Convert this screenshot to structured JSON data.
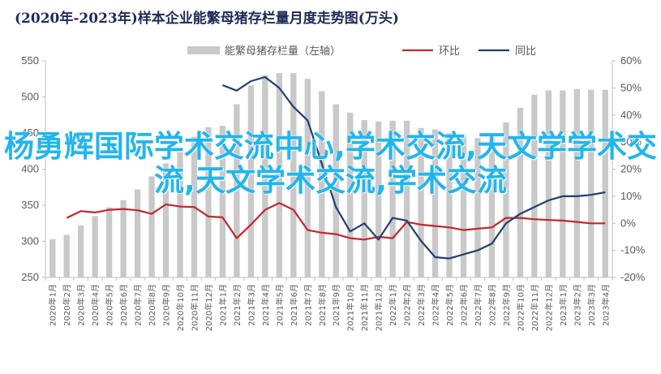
{
  "title": "(2020年-2023年)样本企业能繁母猪存栏量月度走势图(万头)",
  "watermark_text": "杨勇辉国际学术交流中心,学术交流,天文学学术交流,天文学术交流,学术交流",
  "colors": {
    "bar": "#c9c9c9",
    "yoy_line": "#c0282c",
    "mom_line": "#1f3f73",
    "axis": "#bfbfbf",
    "tick_text": "#595959",
    "watermark": "#22b5ee"
  },
  "chart_data": {
    "type": "bar",
    "categories": [
      "2020年1月",
      "2020年2月",
      "2020年3月",
      "2020年4月",
      "2020年5月",
      "2020年6月",
      "2020年7月",
      "2020年8月",
      "2020年9月",
      "2020年10月",
      "2020年11月",
      "2020年12月",
      "2021年1月",
      "2021年2月",
      "2021年3月",
      "2021年4月",
      "2021年5月",
      "2021年6月",
      "2021年7月",
      "2021年8月",
      "2021年9月",
      "2021年10月",
      "2021年11月",
      "2021年12月",
      "2022年1月",
      "2022年2月",
      "2022年3月",
      "2022年4月",
      "2022年5月",
      "2022年6月",
      "2022年7月",
      "2022年8月",
      "2022年9月",
      "2022年10月",
      "2022年11月",
      "2022年12月",
      "2023年1月",
      "2023年2月",
      "2023年3月",
      "2023年4月"
    ],
    "series": [
      {
        "name": "能繁母猪存栏量（左轴）",
        "type": "bar",
        "axis": "left",
        "values": [
          303,
          309,
          322,
          335,
          347,
          357,
          372,
          390,
          408,
          427,
          445,
          458,
          460,
          490,
          516,
          530,
          533,
          533,
          525,
          508,
          490,
          478,
          468,
          466,
          467,
          467,
          457,
          455,
          450,
          445,
          443,
          444,
          465,
          485,
          503,
          509,
          509,
          511,
          510,
          510
        ]
      },
      {
        "name": "环比",
        "type": "line",
        "axis": "right",
        "values": [
          null,
          2.0,
          4.5,
          4.0,
          5.0,
          5.3,
          4.8,
          3.5,
          7.0,
          6.2,
          6.0,
          2.5,
          2.2,
          -5.5,
          -0.5,
          5.0,
          7.5,
          5.0,
          -2.5,
          -3.5,
          -4.0,
          -5.5,
          -6.0,
          -5.0,
          -5.5,
          0.5,
          -0.5,
          -1.0,
          -1.5,
          -2.5,
          -2.0,
          -1.5,
          2.0,
          2.0,
          1.5,
          1.2,
          1.0,
          0.5,
          0.0,
          0.0
        ]
      },
      {
        "name": "同比",
        "type": "line",
        "axis": "right",
        "values": [
          null,
          null,
          null,
          null,
          null,
          null,
          null,
          null,
          null,
          null,
          null,
          null,
          51.0,
          49.0,
          52.5,
          54.0,
          50.0,
          43.0,
          38.0,
          22.0,
          6.0,
          -3.0,
          0.0,
          -6.0,
          2.0,
          1.0,
          -6.5,
          -12.5,
          -13.0,
          -11.5,
          -10.0,
          -7.5,
          0.0,
          3.5,
          6.0,
          8.5,
          10.0,
          10.0,
          10.5,
          11.5
        ]
      }
    ],
    "y_left": {
      "min": 250,
      "max": 550,
      "ticks": [
        "250",
        "300",
        "350",
        "400",
        "450",
        "500",
        "550"
      ]
    },
    "y_right": {
      "min": -20,
      "max": 60,
      "ticks": [
        "-20%",
        "-10%",
        "0%",
        "10%",
        "20%",
        "30%",
        "40%",
        "50%",
        "60%"
      ]
    },
    "grid": false,
    "legend_position": "top"
  }
}
